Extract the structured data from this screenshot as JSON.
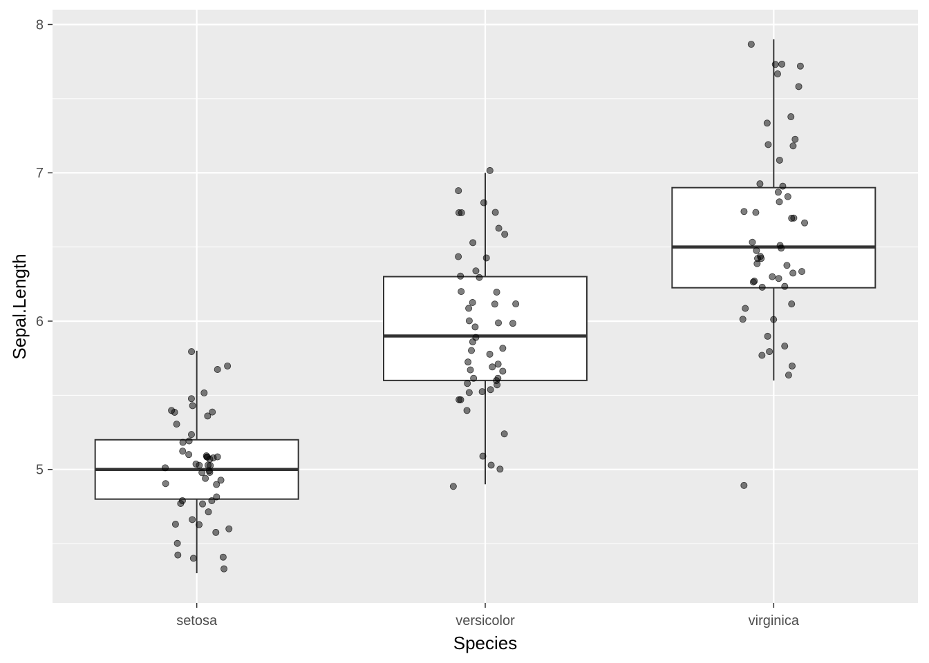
{
  "chart_data": {
    "type": "box",
    "xlabel": "Species",
    "ylabel": "Sepal.Length",
    "categories": [
      "setosa",
      "versicolor",
      "virginica"
    ],
    "ylim": [
      4.1,
      8.1
    ],
    "yticks": [
      5,
      6,
      7,
      8
    ],
    "grid": true,
    "colors": {
      "panel": "#ebebeb",
      "grid": "#ffffff",
      "box_fill": "#ffffff",
      "box_line": "#333333",
      "point": "#000000"
    },
    "boxes": [
      {
        "category": "setosa",
        "whisker_low": 4.3,
        "q1": 4.8,
        "median": 5.0,
        "q3": 5.2,
        "whisker_high": 5.8
      },
      {
        "category": "versicolor",
        "whisker_low": 4.9,
        "q1": 5.6,
        "median": 5.9,
        "q3": 6.3,
        "whisker_high": 7.0
      },
      {
        "category": "virginica",
        "whisker_low": 5.6,
        "q1": 6.225,
        "median": 6.5,
        "q3": 6.9,
        "whisker_high": 7.9
      }
    ],
    "points": {
      "setosa": [
        5.1,
        4.9,
        4.7,
        4.6,
        5.0,
        5.4,
        4.6,
        5.0,
        4.4,
        4.9,
        5.4,
        4.8,
        4.8,
        4.3,
        5.8,
        5.7,
        5.4,
        5.1,
        5.7,
        5.1,
        5.4,
        5.1,
        4.6,
        5.1,
        4.8,
        5.0,
        5.0,
        5.2,
        5.2,
        4.7,
        4.8,
        5.4,
        5.2,
        5.5,
        4.9,
        5.0,
        5.5,
        4.9,
        4.4,
        5.1,
        5.0,
        4.5,
        4.4,
        5.0,
        5.1,
        4.8,
        5.1,
        4.6,
        5.3,
        5.0
      ],
      "versicolor": [
        7.0,
        6.4,
        6.9,
        5.5,
        6.5,
        5.7,
        6.3,
        4.9,
        6.6,
        5.2,
        5.0,
        5.9,
        6.0,
        6.1,
        5.6,
        6.7,
        5.6,
        5.8,
        6.2,
        5.6,
        5.9,
        6.1,
        6.3,
        6.1,
        6.4,
        6.6,
        6.8,
        6.7,
        6.0,
        5.7,
        5.5,
        5.5,
        5.8,
        6.0,
        5.4,
        6.0,
        6.7,
        6.3,
        5.6,
        5.5,
        5.5,
        6.1,
        5.8,
        5.0,
        5.6,
        5.7,
        5.7,
        6.2,
        5.1,
        5.7
      ],
      "virginica": [
        6.3,
        5.8,
        7.1,
        6.3,
        6.5,
        7.6,
        4.9,
        7.3,
        6.7,
        7.2,
        6.5,
        6.4,
        6.8,
        5.7,
        5.8,
        6.4,
        6.5,
        7.7,
        7.7,
        6.0,
        6.9,
        5.6,
        7.7,
        6.3,
        6.7,
        7.2,
        6.2,
        6.1,
        6.4,
        7.2,
        7.4,
        7.9,
        6.4,
        6.3,
        6.1,
        7.7,
        6.3,
        6.4,
        6.0,
        6.9,
        6.7,
        6.9,
        5.8,
        6.8,
        6.7,
        6.7,
        6.3,
        6.5,
        6.2,
        5.9
      ]
    }
  }
}
